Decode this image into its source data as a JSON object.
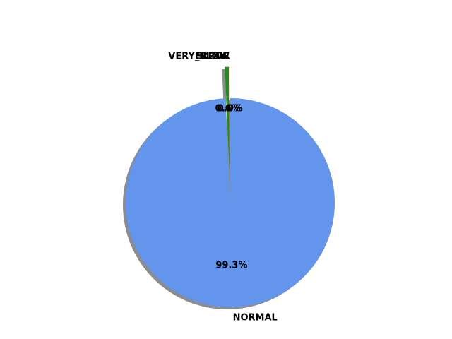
{
  "chart_data": {
    "type": "pie",
    "title": "",
    "slices": [
      {
        "label": "NORMAL",
        "value": 99.3,
        "pct_label": "99.3%",
        "color": "#6495ED"
      },
      {
        "label": "SLOW",
        "value": 0.6,
        "pct_label": "0.6%",
        "color": "#228B22"
      },
      {
        "label": "VERY_SLOW",
        "value": 0.05,
        "pct_label": "0.0%",
        "color": "#B22222"
      },
      {
        "label": "ERROR",
        "value": 0.05,
        "pct_label": "0.0%",
        "color": "#8B4513"
      }
    ],
    "start_angle_deg": 90,
    "direction": "clockwise",
    "shadow": true,
    "legend": "none"
  }
}
